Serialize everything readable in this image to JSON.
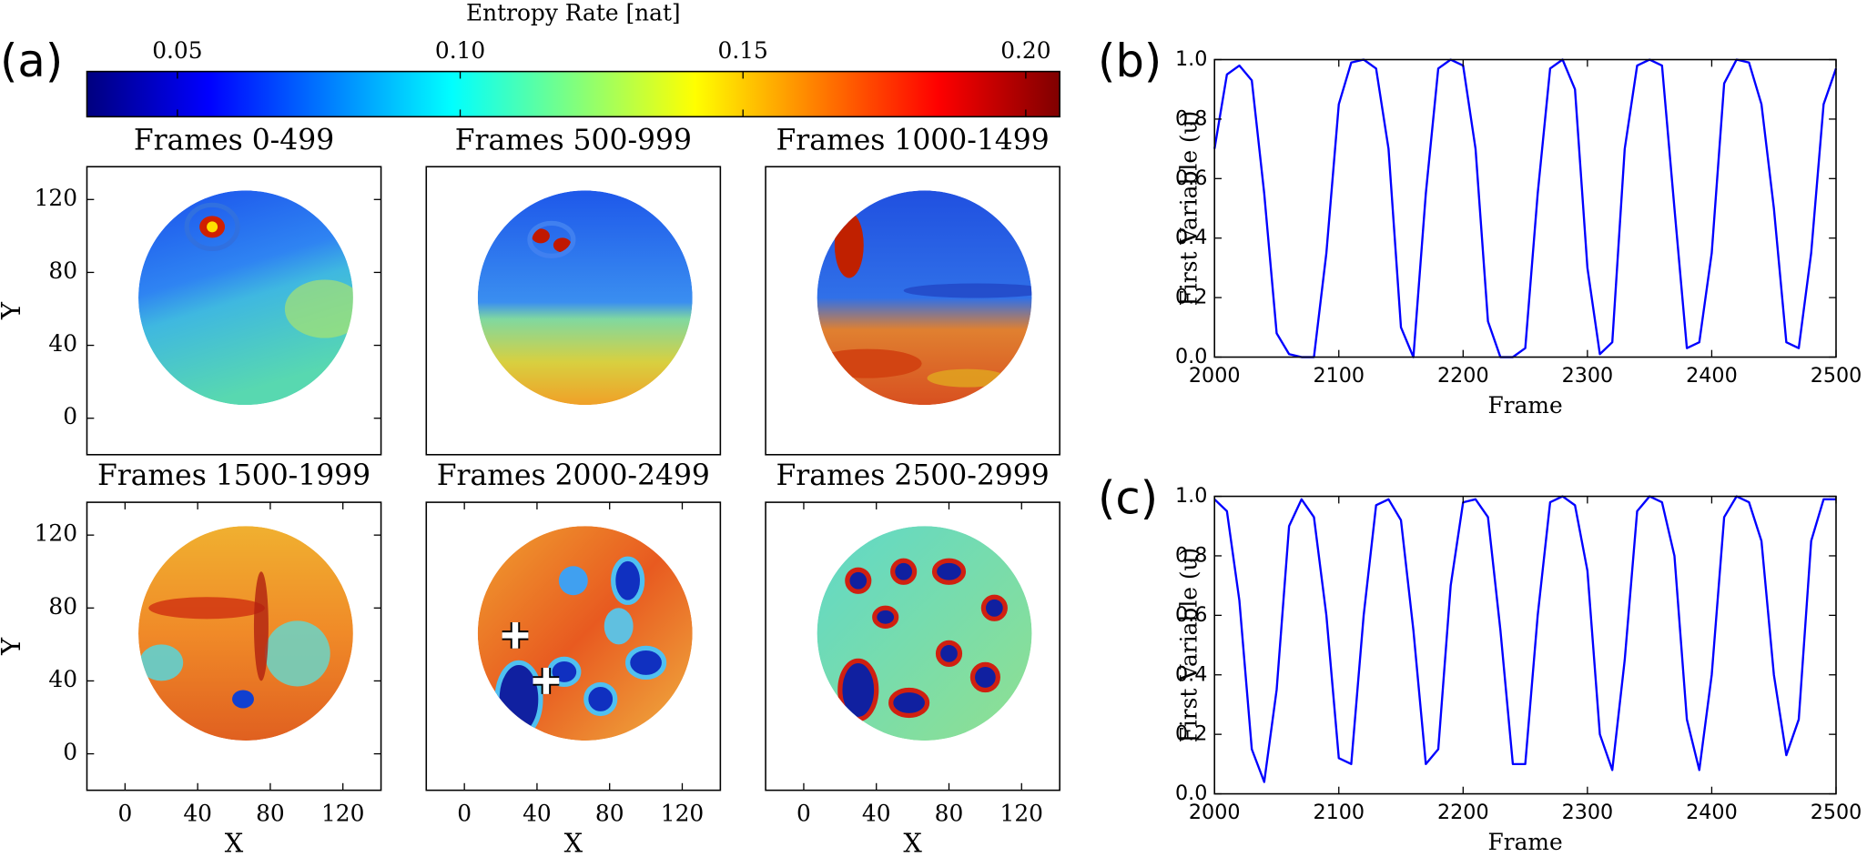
{
  "chart_data": [
    {
      "type": "colorbar",
      "panel_label": "(a)",
      "label": "Entropy Rate [nat]",
      "clim": [
        0.034,
        0.206
      ],
      "ticks": [
        0.05,
        {
          "value": 0.1,
          "label": "0.10"
        },
        0.15,
        {
          "value": 0.2,
          "label": "0.20"
        }
      ],
      "colors": [
        "#00007f",
        "#0000ff",
        "#007fff",
        "#00ffff",
        "#7fff7f",
        "#ffff00",
        "#ff7f00",
        "#ff0000",
        "#7f0000"
      ]
    },
    {
      "type": "image",
      "title": "Frames 0-499",
      "xlim": [
        -21,
        141
      ],
      "ylim": [
        -20,
        138
      ],
      "yticks": [
        0,
        40,
        80,
        120
      ],
      "ylabel": "Y"
    },
    {
      "type": "image",
      "title": "Frames 500-999",
      "xlim": [
        -21,
        141
      ],
      "ylim": [
        -20,
        138
      ]
    },
    {
      "type": "image",
      "title": "Frames 1000-1499",
      "xlim": [
        -21,
        141
      ],
      "ylim": [
        -20,
        138
      ]
    },
    {
      "type": "image",
      "title": "Frames 1500-1999",
      "xlim": [
        -21,
        141
      ],
      "ylim": [
        -20,
        138
      ],
      "xticks": [
        0,
        40,
        80,
        120
      ],
      "yticks": [
        0,
        40,
        80,
        120
      ],
      "xlabel": "X",
      "ylabel": "Y"
    },
    {
      "type": "image",
      "title": "Frames 2000-2499",
      "xlim": [
        -21,
        141
      ],
      "ylim": [
        -20,
        138
      ],
      "xticks": [
        0,
        40,
        80,
        120
      ],
      "xlabel": "X",
      "markers": {
        "x": [
          28,
          45
        ],
        "y": [
          65,
          40
        ]
      }
    },
    {
      "type": "image",
      "title": "Frames 2500-2999",
      "xlim": [
        -21,
        141
      ],
      "ylim": [
        -20,
        138
      ],
      "xticks": [
        0,
        40,
        80,
        120
      ],
      "xlabel": "X"
    },
    {
      "type": "line",
      "panel_label": "(b)",
      "xlabel": "Frame",
      "ylabel": "First Variable (u)",
      "xlim": [
        2000,
        2500
      ],
      "ylim": [
        0,
        1
      ],
      "xticks": [
        2000,
        2100,
        2200,
        2300,
        2400,
        2500
      ],
      "yticks": [
        {
          "value": 0,
          "label": "0.0"
        },
        0.2,
        0.4,
        0.6,
        0.8,
        {
          "value": 1,
          "label": "1.0"
        }
      ],
      "x": [
        2000,
        2010,
        2020,
        2030,
        2040,
        2050,
        2060,
        2070,
        2080,
        2090,
        2100,
        2110,
        2120,
        2130,
        2140,
        2150,
        2160,
        2170,
        2180,
        2190,
        2200,
        2210,
        2220,
        2230,
        2240,
        2250,
        2260,
        2270,
        2280,
        2290,
        2300,
        2310,
        2320,
        2330,
        2340,
        2350,
        2360,
        2370,
        2380,
        2390,
        2400,
        2410,
        2420,
        2430,
        2440,
        2450,
        2460,
        2470,
        2480,
        2490,
        2500
      ],
      "series": [
        {
          "color": "#0000ff",
          "values": [
            0.7,
            0.95,
            0.98,
            0.93,
            0.55,
            0.08,
            0.01,
            0.0,
            0.0,
            0.35,
            0.85,
            0.99,
            1.0,
            0.97,
            0.7,
            0.1,
            0.0,
            0.55,
            0.97,
            1.0,
            0.98,
            0.7,
            0.12,
            0.0,
            0.0,
            0.03,
            0.55,
            0.97,
            1.0,
            0.9,
            0.3,
            0.01,
            0.05,
            0.7,
            0.98,
            1.0,
            0.98,
            0.5,
            0.03,
            0.05,
            0.35,
            0.92,
            1.0,
            0.99,
            0.85,
            0.5,
            0.05,
            0.03,
            0.35,
            0.85,
            0.97
          ]
        }
      ]
    },
    {
      "type": "line",
      "panel_label": "(c)",
      "xlabel": "Frame",
      "ylabel": "First Variable (u)",
      "xlim": [
        2000,
        2500
      ],
      "ylim": [
        0,
        1
      ],
      "xticks": [
        2000,
        2100,
        2200,
        2300,
        2400,
        2500
      ],
      "yticks": [
        {
          "value": 0,
          "label": "0.0"
        },
        0.2,
        0.4,
        0.6,
        0.8,
        {
          "value": 1,
          "label": "1.0"
        }
      ],
      "x": [
        2000,
        2010,
        2020,
        2030,
        2040,
        2050,
        2060,
        2070,
        2080,
        2090,
        2100,
        2110,
        2120,
        2130,
        2140,
        2150,
        2160,
        2170,
        2180,
        2190,
        2200,
        2210,
        2220,
        2230,
        2240,
        2250,
        2260,
        2270,
        2280,
        2290,
        2300,
        2310,
        2320,
        2330,
        2340,
        2350,
        2360,
        2370,
        2380,
        2390,
        2400,
        2410,
        2420,
        2430,
        2440,
        2450,
        2460,
        2470,
        2480,
        2490,
        2500
      ],
      "series": [
        {
          "color": "#0000ff",
          "values": [
            0.99,
            0.95,
            0.65,
            0.15,
            0.04,
            0.35,
            0.9,
            0.99,
            0.93,
            0.6,
            0.12,
            0.1,
            0.6,
            0.97,
            0.99,
            0.92,
            0.55,
            0.1,
            0.15,
            0.7,
            0.98,
            0.99,
            0.93,
            0.55,
            0.1,
            0.1,
            0.6,
            0.98,
            1.0,
            0.97,
            0.75,
            0.2,
            0.08,
            0.45,
            0.95,
            1.0,
            0.98,
            0.8,
            0.25,
            0.08,
            0.4,
            0.93,
            1.0,
            0.98,
            0.85,
            0.4,
            0.13,
            0.25,
            0.85,
            0.99,
            0.99
          ]
        }
      ]
    }
  ]
}
